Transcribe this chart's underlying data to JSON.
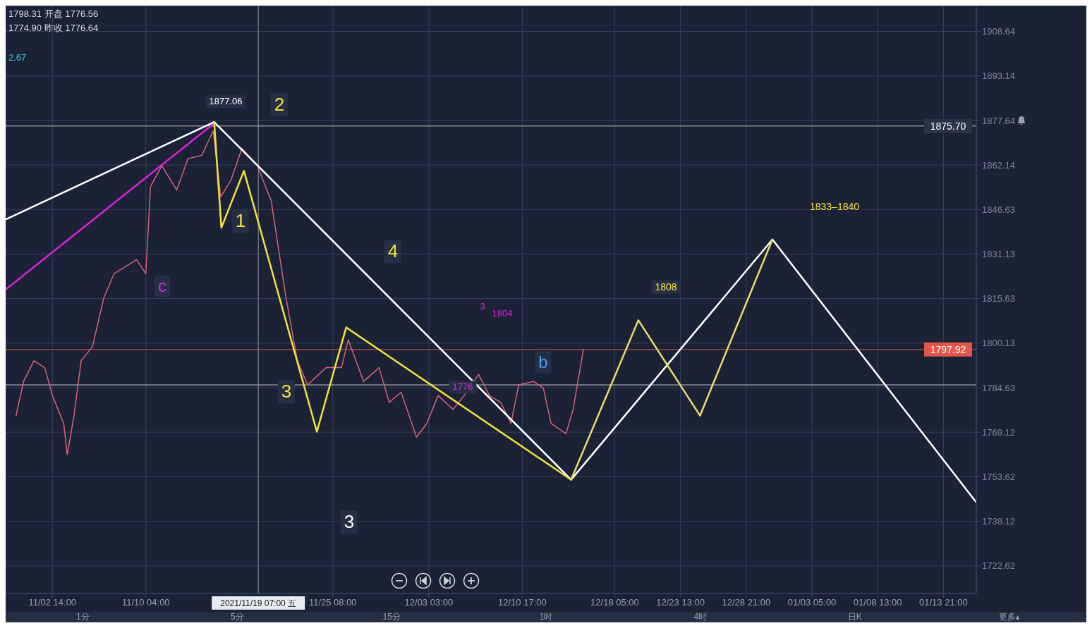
{
  "chart_data": {
    "type": "line",
    "xlim": [
      "2021-10-29T19:00",
      "2022-01-16T13:00"
    ],
    "ylim": [
      1713,
      1917.6
    ],
    "xticks": [
      {
        "value": "2021-11-02T14:00",
        "label": "11/02 14:00"
      },
      {
        "value": "2021-11-10T04:00",
        "label": "11/10 04:00"
      },
      {
        "value": "2021-11-25T08:00",
        "label": "11/25 08:00"
      },
      {
        "value": "2021-12-03T03:00",
        "label": "12/03 03:00"
      },
      {
        "value": "2021-12-10T17:00",
        "label": "12/10 17:00"
      },
      {
        "value": "2021-12-18T05:00",
        "label": "12/18 05:00"
      },
      {
        "value": "2021-12-23T13:00",
        "label": "12/23 13:00"
      },
      {
        "value": "2021-12-28T21:00",
        "label": "12/28 21:00"
      },
      {
        "value": "2022-01-03T05:00",
        "label": "01/03 05:00"
      },
      {
        "value": "2022-01-08T13:00",
        "label": "01/08 13:00"
      },
      {
        "value": "2022-01-13T21:00",
        "label": "01/13 21:00"
      }
    ],
    "yticks": [
      1722.62,
      1738.12,
      1753.62,
      1769.12,
      1784.63,
      1800.13,
      1815.63,
      1831.13,
      1846.63,
      1862.14,
      1877.64,
      1893.14,
      1908.64
    ],
    "grid": true,
    "marker": "none",
    "line_style": "solid",
    "series": [
      {
        "color": "#d9607a",
        "x": [
          "2021-10-30T15:00",
          "2021-10-31T06:00",
          "2021-11-01T02:00",
          "2021-11-01T23:00",
          "2021-11-02T14:00",
          "2021-11-03T12:00",
          "2021-11-03T19:00",
          "2021-11-04T08:00",
          "2021-11-04T22:00",
          "2021-11-05T20:00",
          "2021-11-06T18:00",
          "2021-11-07T14:00",
          "2021-11-09T10:00",
          "2021-11-10T04:00",
          "2021-11-10T13:00",
          "2021-11-11T11:00",
          "2021-11-12T16:00",
          "2021-11-13T14:00",
          "2021-11-14T17:00",
          "2021-11-15T15:00",
          "2021-11-16T06:00",
          "2021-11-17T02:00",
          "2021-11-17T23:00",
          "2021-11-19T05:00",
          "2021-11-20T08:00",
          "2021-11-21T13:00",
          "2021-11-22T11:00",
          "2021-11-23T07:00",
          "2021-11-24T19:00",
          "2021-11-26T01:00",
          "2021-11-26T14:00",
          "2021-11-27T20:00",
          "2021-11-29T02:00",
          "2021-11-29T22:00",
          "2021-11-30T21:00",
          "2021-12-02T03:00",
          "2021-12-02T23:00",
          "2021-12-03T21:00",
          "2021-12-05T02:00",
          "2021-12-06T00:00",
          "2021-12-07T04:00",
          "2021-12-08T01:00",
          "2021-12-08T23:00",
          "2021-12-09T19:00",
          "2021-12-10T10:00",
          "2021-12-11T15:00",
          "2021-12-12T10:00",
          "2021-12-13T01:00",
          "2021-12-14T06:00",
          "2021-12-14T20:00",
          "2021-12-15T16:00"
        ],
        "values": [
          1774.7,
          1786.8,
          1794.0,
          1791.6,
          1781.9,
          1772.2,
          1761.3,
          1774.7,
          1794.0,
          1798.9,
          1815.8,
          1824.3,
          1829.2,
          1824.3,
          1854.6,
          1861.9,
          1853.4,
          1864.3,
          1865.5,
          1874.0,
          1851.0,
          1857.0,
          1867.9,
          1861.9,
          1849.7,
          1815.8,
          1794.0,
          1785.6,
          1791.6,
          1791.6,
          1801.3,
          1786.8,
          1791.6,
          1779.5,
          1783.1,
          1767.4,
          1772.2,
          1781.9,
          1777.1,
          1781.9,
          1789.2,
          1781.9,
          1779.5,
          1772.2,
          1785.6,
          1786.8,
          1784.4,
          1772.2,
          1768.6,
          1777.1,
          1797.9
        ]
      },
      {
        "color": "#e020e0",
        "x": [
          "2021-10-29T19:00",
          "2021-11-15T15:00"
        ],
        "values": [
          1818.8,
          1876.4
        ]
      },
      {
        "color": "#ffffff",
        "x": [
          "2021-10-29T19:00",
          "2021-11-15T17:00",
          "2021-12-14T16:00",
          "2021-12-31T00:00",
          "2022-01-16T13:00"
        ],
        "values": [
          1843.2,
          1877.1,
          1752.6,
          1836.2,
          1744.7
        ]
      },
      {
        "color": "#f2e33a",
        "x": [
          "2021-11-15T17:00",
          "2021-11-16T07:00",
          "2021-11-18T03:00",
          "2021-11-24T01:00",
          "2021-11-26T10:00",
          "2021-12-14T16:00"
        ],
        "values": [
          1877.1,
          1840.3,
          1860.1,
          1769.3,
          1805.6,
          1752.6
        ]
      },
      {
        "color": "#e8dc6a",
        "x": [
          "2021-12-14T16:00",
          "2021-12-20T03:00",
          "2021-12-25T03:00",
          "2021-12-31T00:00"
        ],
        "values": [
          1752.6,
          1808.1,
          1774.9,
          1836.2
        ]
      }
    ],
    "ref_lines": [
      {
        "axis": "y",
        "value": 1875.7,
        "label": "1875.70",
        "color": "#cccccc"
      },
      {
        "axis": "y",
        "value": 1797.92,
        "label": "1797.92",
        "color": "#e0564a"
      },
      {
        "axis": "y",
        "value": 1785.6,
        "color": "#cccccc"
      },
      {
        "axis": "x",
        "value": "2021-11-19T07:00",
        "label": "2021/11/19 07:00 五",
        "color": "#8a90a0"
      }
    ],
    "annotations": [
      "1798.31 开盘 1776.56",
      "1774.90 昨收 1776.64",
      "2.67",
      "1分",
      "5分",
      "15分",
      "1时",
      "4时",
      "日K",
      "更多▴",
      "1877.06",
      "2",
      "1",
      "4",
      "3",
      "3",
      "c",
      "b",
      "3",
      "1804",
      "1776",
      "1808",
      "1833–1840"
    ]
  }
}
